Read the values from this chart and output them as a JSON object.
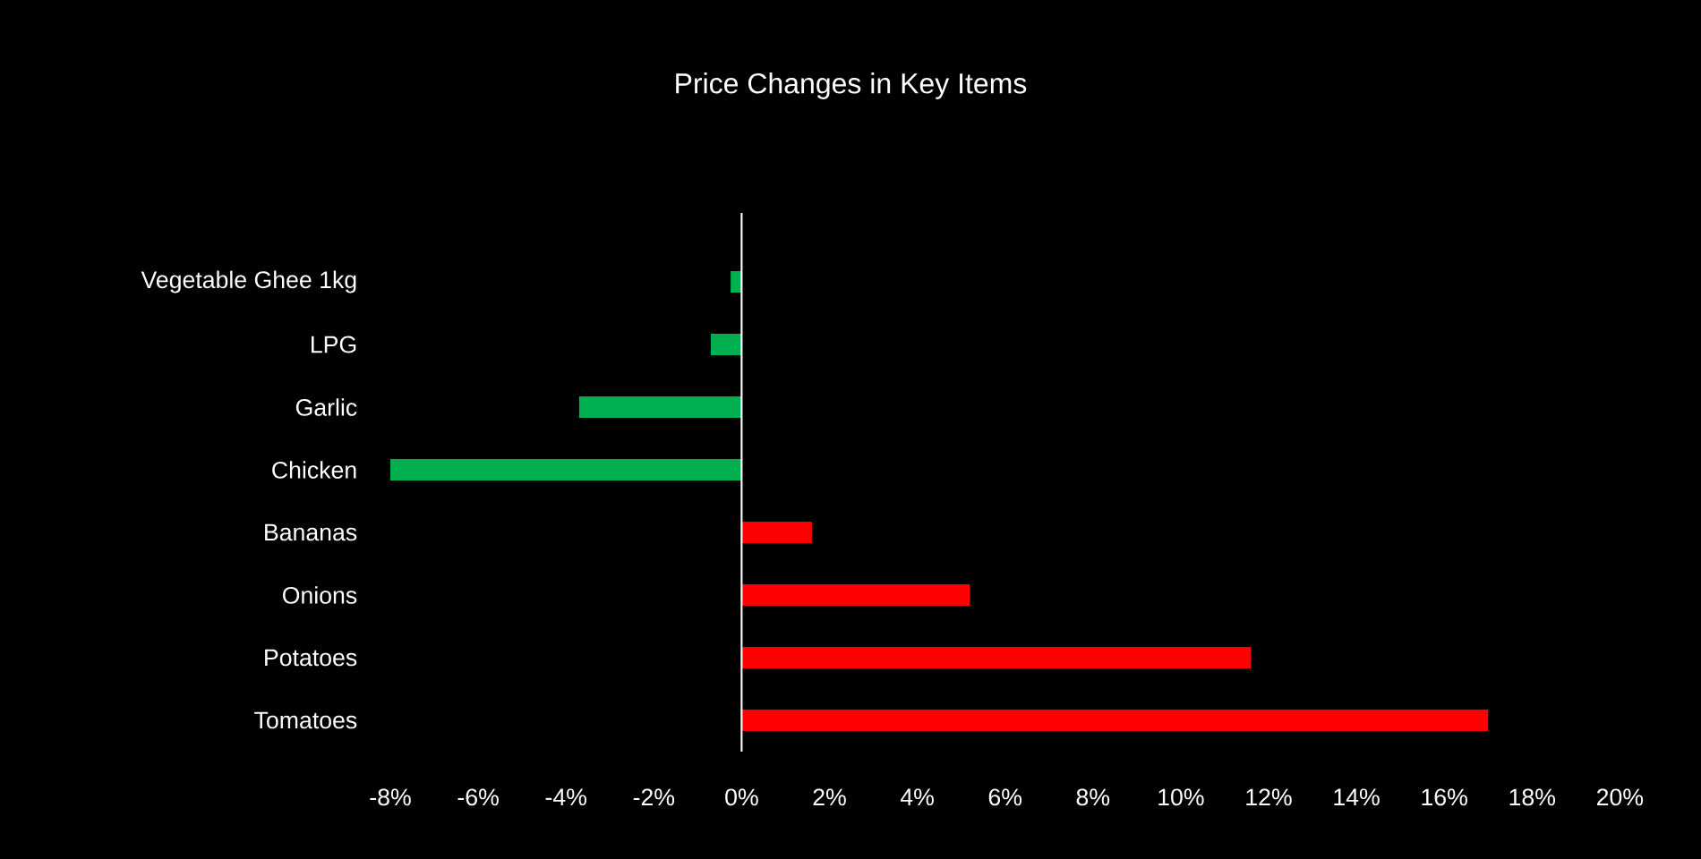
{
  "chart_data": {
    "type": "bar",
    "orientation": "horizontal",
    "title": "Price Changes in Key Items",
    "categories": [
      "Vegetable Ghee 1kg",
      "LPG",
      "Garlic",
      "Chicken",
      "Bananas",
      "Onions",
      "Potatoes",
      "Tomatoes"
    ],
    "values": [
      -0.25,
      -0.7,
      -3.7,
      -8.0,
      1.6,
      5.2,
      11.6,
      17.0
    ],
    "colors": [
      "#00b050",
      "#00b050",
      "#00b050",
      "#00b050",
      "#ff0000",
      "#ff0000",
      "#ff0000",
      "#ff0000"
    ],
    "xlim": [
      -8,
      20
    ],
    "xticks": [
      {
        "value": -8,
        "label": "-8%"
      },
      {
        "value": -6,
        "label": "-6%"
      },
      {
        "value": -4,
        "label": "-4%"
      },
      {
        "value": -2,
        "label": "-2%"
      },
      {
        "value": 0,
        "label": "0%"
      },
      {
        "value": 2,
        "label": "2%"
      },
      {
        "value": 4,
        "label": "4%"
      },
      {
        "value": 6,
        "label": "6%"
      },
      {
        "value": 8,
        "label": "8%"
      },
      {
        "value": 10,
        "label": "10%"
      },
      {
        "value": 12,
        "label": "12%"
      },
      {
        "value": 14,
        "label": "14%"
      },
      {
        "value": 16,
        "label": "16%"
      },
      {
        "value": 18,
        "label": "18%"
      },
      {
        "value": 20,
        "label": "20%"
      }
    ],
    "stacked": false
  }
}
